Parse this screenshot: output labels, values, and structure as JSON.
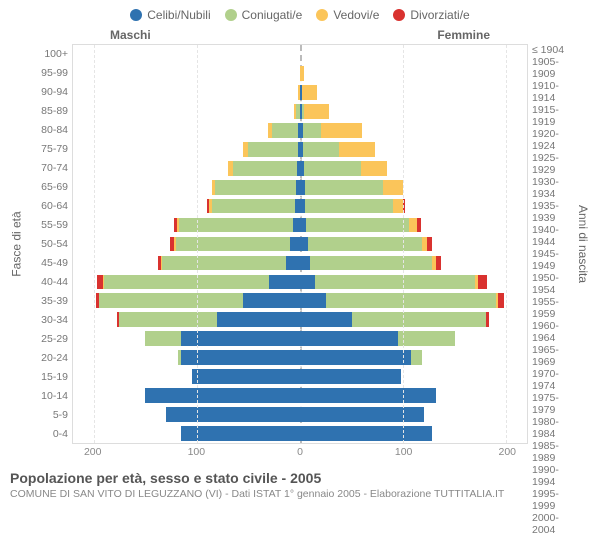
{
  "colors": {
    "celibi": "#2f72b0",
    "coniugati": "#b1d08c",
    "vedovi": "#fbc55a",
    "divorziati": "#d9322f",
    "grid": "#e5e5e5",
    "center": "#bbbbbb",
    "bg": "#ffffff"
  },
  "legend": [
    {
      "key": "celibi",
      "label": "Celibi/Nubili"
    },
    {
      "key": "coniugati",
      "label": "Coniugati/e"
    },
    {
      "key": "vedovi",
      "label": "Vedovi/e"
    },
    {
      "key": "divorziati",
      "label": "Divorziati/e"
    }
  ],
  "side_headers": {
    "left": "Maschi",
    "right": "Femmine"
  },
  "axis_titles": {
    "left": "Fasce di età",
    "right": "Anni di nascita"
  },
  "x": {
    "max": 220,
    "ticks": [
      200,
      100,
      0,
      100,
      200
    ]
  },
  "age_labels": [
    "100+",
    "95-99",
    "90-94",
    "85-89",
    "80-84",
    "75-79",
    "70-74",
    "65-69",
    "60-64",
    "55-59",
    "50-54",
    "45-49",
    "40-44",
    "35-39",
    "30-34",
    "25-29",
    "20-24",
    "15-19",
    "10-14",
    "5-9",
    "0-4"
  ],
  "birth_labels": [
    "≤ 1904",
    "1905-1909",
    "1910-1914",
    "1915-1919",
    "1920-1924",
    "1925-1929",
    "1930-1934",
    "1935-1939",
    "1940-1944",
    "1945-1949",
    "1950-1954",
    "1955-1959",
    "1960-1964",
    "1965-1969",
    "1970-1974",
    "1975-1979",
    "1980-1984",
    "1985-1989",
    "1990-1994",
    "1995-1999",
    "2000-2004"
  ],
  "rows": [
    {
      "m": {
        "c": 0,
        "g": 0,
        "v": 0,
        "d": 0
      },
      "f": {
        "c": 0,
        "g": 0,
        "v": 0,
        "d": 0
      }
    },
    {
      "m": {
        "c": 0,
        "g": 0,
        "v": 0,
        "d": 0
      },
      "f": {
        "c": 0,
        "g": 0,
        "v": 4,
        "d": 0
      }
    },
    {
      "m": {
        "c": 0,
        "g": 0,
        "v": 2,
        "d": 0
      },
      "f": {
        "c": 2,
        "g": 0,
        "v": 14,
        "d": 0
      }
    },
    {
      "m": {
        "c": 0,
        "g": 4,
        "v": 2,
        "d": 0
      },
      "f": {
        "c": 2,
        "g": 2,
        "v": 24,
        "d": 0
      }
    },
    {
      "m": {
        "c": 2,
        "g": 25,
        "v": 4,
        "d": 0
      },
      "f": {
        "c": 3,
        "g": 17,
        "v": 40,
        "d": 0
      }
    },
    {
      "m": {
        "c": 2,
        "g": 48,
        "v": 5,
        "d": 0
      },
      "f": {
        "c": 3,
        "g": 35,
        "v": 35,
        "d": 0
      }
    },
    {
      "m": {
        "c": 3,
        "g": 62,
        "v": 5,
        "d": 0
      },
      "f": {
        "c": 4,
        "g": 55,
        "v": 25,
        "d": 0
      }
    },
    {
      "m": {
        "c": 4,
        "g": 78,
        "v": 3,
        "d": 0
      },
      "f": {
        "c": 5,
        "g": 75,
        "v": 20,
        "d": 0
      }
    },
    {
      "m": {
        "c": 5,
        "g": 80,
        "v": 3,
        "d": 2
      },
      "f": {
        "c": 5,
        "g": 85,
        "v": 10,
        "d": 2
      }
    },
    {
      "m": {
        "c": 7,
        "g": 110,
        "v": 2,
        "d": 3
      },
      "f": {
        "c": 6,
        "g": 100,
        "v": 7,
        "d": 4
      }
    },
    {
      "m": {
        "c": 10,
        "g": 110,
        "v": 2,
        "d": 4
      },
      "f": {
        "c": 8,
        "g": 110,
        "v": 5,
        "d": 5
      }
    },
    {
      "m": {
        "c": 14,
        "g": 120,
        "v": 1,
        "d": 3
      },
      "f": {
        "c": 10,
        "g": 118,
        "v": 4,
        "d": 5
      }
    },
    {
      "m": {
        "c": 30,
        "g": 160,
        "v": 1,
        "d": 6
      },
      "f": {
        "c": 15,
        "g": 155,
        "v": 3,
        "d": 8
      }
    },
    {
      "m": {
        "c": 55,
        "g": 140,
        "v": 0,
        "d": 3
      },
      "f": {
        "c": 25,
        "g": 165,
        "v": 2,
        "d": 6
      }
    },
    {
      "m": {
        "c": 80,
        "g": 95,
        "v": 0,
        "d": 2
      },
      "f": {
        "c": 50,
        "g": 130,
        "v": 0,
        "d": 3
      }
    },
    {
      "m": {
        "c": 115,
        "g": 35,
        "v": 0,
        "d": 0
      },
      "f": {
        "c": 95,
        "g": 55,
        "v": 0,
        "d": 0
      }
    },
    {
      "m": {
        "c": 115,
        "g": 3,
        "v": 0,
        "d": 0
      },
      "f": {
        "c": 108,
        "g": 10,
        "v": 0,
        "d": 0
      }
    },
    {
      "m": {
        "c": 105,
        "g": 0,
        "v": 0,
        "d": 0
      },
      "f": {
        "c": 98,
        "g": 0,
        "v": 0,
        "d": 0
      }
    },
    {
      "m": {
        "c": 150,
        "g": 0,
        "v": 0,
        "d": 0
      },
      "f": {
        "c": 132,
        "g": 0,
        "v": 0,
        "d": 0
      }
    },
    {
      "m": {
        "c": 130,
        "g": 0,
        "v": 0,
        "d": 0
      },
      "f": {
        "c": 120,
        "g": 0,
        "v": 0,
        "d": 0
      }
    },
    {
      "m": {
        "c": 115,
        "g": 0,
        "v": 0,
        "d": 0
      },
      "f": {
        "c": 128,
        "g": 0,
        "v": 0,
        "d": 0
      }
    }
  ],
  "footer": {
    "title": "Popolazione per età, sesso e stato civile - 2005",
    "sub": "COMUNE DI SAN VITO DI LEGUZZANO (VI) - Dati ISTAT 1° gennaio 2005 - Elaborazione TUTTITALIA.IT"
  }
}
